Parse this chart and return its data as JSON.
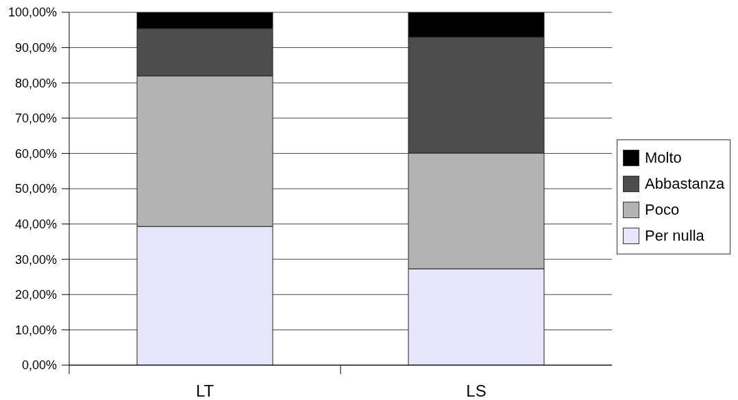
{
  "chart_data": {
    "type": "bar",
    "categories": [
      "LT",
      "LS"
    ],
    "stacked": true,
    "series": [
      {
        "name": "Per nulla",
        "color": "#e6e6fa",
        "values": [
          39.3,
          27.3
        ]
      },
      {
        "name": "Poco",
        "color": "#b3b3b3",
        "values": [
          42.7,
          32.8
        ]
      },
      {
        "name": "Abbastanza",
        "color": "#4d4d4d",
        "values": [
          13.4,
          32.9
        ]
      },
      {
        "name": "Molto",
        "color": "#000000",
        "values": [
          4.6,
          7.0
        ]
      }
    ],
    "ylim": [
      0,
      100
    ],
    "yticks": [
      {
        "value": 0,
        "label": "0,00%"
      },
      {
        "value": 10,
        "label": "10,00%"
      },
      {
        "value": 20,
        "label": "20,00%"
      },
      {
        "value": 30,
        "label": "30,00%"
      },
      {
        "value": 40,
        "label": "40,00%"
      },
      {
        "value": 50,
        "label": "50,00%"
      },
      {
        "value": 60,
        "label": "60,00%"
      },
      {
        "value": 70,
        "label": "70,00%"
      },
      {
        "value": 80,
        "label": "80,00%"
      },
      {
        "value": 90,
        "label": "90,00%"
      },
      {
        "value": 100,
        "label": "100,00%"
      }
    ],
    "grid": "y",
    "legend": "right"
  }
}
